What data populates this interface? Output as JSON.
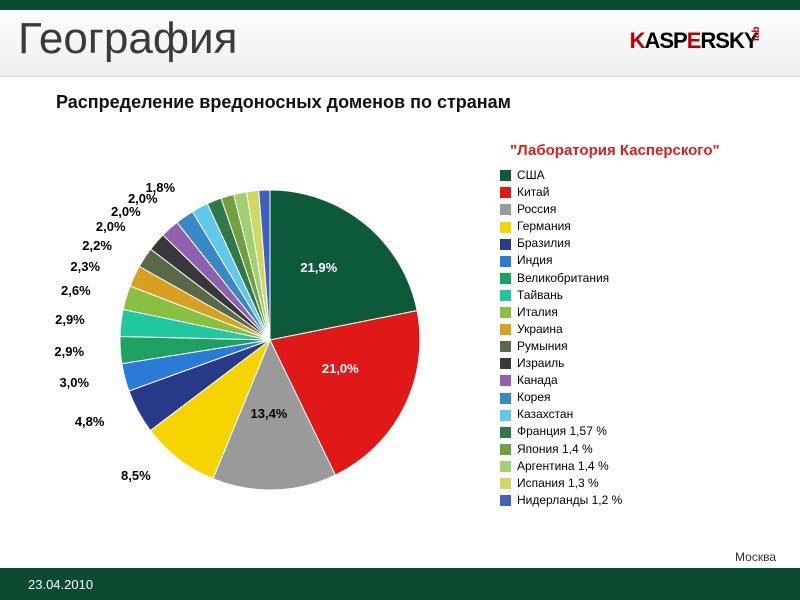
{
  "header": {
    "title": "География",
    "logo_main": "KASPERSKY",
    "logo_side": "lab",
    "top_bar_color": "#0d4a32"
  },
  "subtitle": "Распределение вредоносных доменов по странам",
  "legend_title": "\"Лаборатория Касперского\"",
  "chart": {
    "type": "pie",
    "background_color": "#ffffff",
    "label_fontsize": 13,
    "label_fontweight": 700,
    "slices": [
      {
        "label": "США",
        "value": 21.9,
        "color": "#0d5a3a",
        "show_label": "21,9%"
      },
      {
        "label": "Китай",
        "value": 21.0,
        "color": "#e01818",
        "show_label": "21,0%"
      },
      {
        "label": "Россия",
        "value": 13.4,
        "color": "#9a9a9a",
        "show_label": "13,4%"
      },
      {
        "label": "Германия",
        "value": 8.5,
        "color": "#f5d400",
        "show_label": "8,5%"
      },
      {
        "label": "Бразилия",
        "value": 4.8,
        "color": "#2a3a8a",
        "show_label": "4,8%"
      },
      {
        "label": "Индия",
        "value": 3.0,
        "color": "#2a7ad8",
        "show_label": "3,0%"
      },
      {
        "label": "Великобритания",
        "value": 2.9,
        "color": "#1ea060",
        "show_label": "2,9%"
      },
      {
        "label": "Тайвань",
        "value": 2.9,
        "color": "#20c8a0",
        "show_label": "2,9%"
      },
      {
        "label": "Италия",
        "value": 2.6,
        "color": "#8ac040",
        "show_label": "2,6%"
      },
      {
        "label": "Украина",
        "value": 2.3,
        "color": "#d8a020",
        "show_label": "2,3%"
      },
      {
        "label": "Румыния",
        "value": 2.2,
        "color": "#586848",
        "show_label": "2,2%"
      },
      {
        "label": "Израиль",
        "value": 2.0,
        "color": "#383838",
        "show_label": "2,0%"
      },
      {
        "label": "Канада",
        "value": 2.0,
        "color": "#9060b0",
        "show_label": "2,0%"
      },
      {
        "label": "Корея",
        "value": 2.0,
        "color": "#3888c8",
        "show_label": "2,0%"
      },
      {
        "label": "Казахстан",
        "value": 1.8,
        "color": "#60c8e8",
        "show_label": "1,8%"
      },
      {
        "label": "Франция",
        "value": 1.57,
        "color": "#307848",
        "show_label": null,
        "legend_suffix": "  1,57 %"
      },
      {
        "label": "Япония",
        "value": 1.4,
        "color": "#70a040",
        "show_label": null,
        "legend_suffix": "  1,4 %"
      },
      {
        "label": "Аргентина",
        "value": 1.4,
        "color": "#a0d070",
        "show_label": null,
        "legend_suffix": "  1,4 %"
      },
      {
        "label": "Испания",
        "value": 1.3,
        "color": "#d0d860",
        "show_label": null,
        "legend_suffix": "  1,3 %"
      },
      {
        "label": "Нидерланды",
        "value": 1.2,
        "color": "#4060c0",
        "show_label": null,
        "legend_suffix": "  1,2 %"
      }
    ]
  },
  "footer": {
    "date": "23.04.2010",
    "location": "Москва",
    "bar_color": "#0d4a32"
  }
}
